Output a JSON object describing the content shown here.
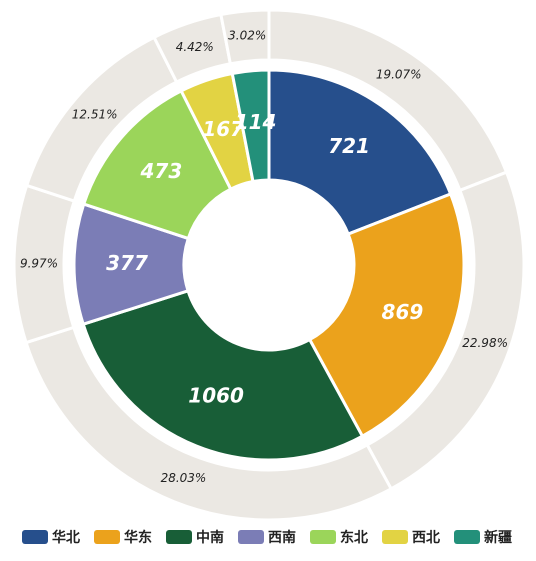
{
  "chart_data": {
    "type": "pie",
    "categories": [
      "华北",
      "华东",
      "中南",
      "西南",
      "东北",
      "西北",
      "新疆"
    ],
    "values": [
      721,
      869,
      1060,
      377,
      473,
      167,
      114
    ],
    "colors": [
      "#264f8c",
      "#eba21c",
      "#185e37",
      "#7b7db6",
      "#9bd55a",
      "#e2d343",
      "#23907a"
    ],
    "percentages": [
      19.07,
      22.98,
      28.03,
      9.97,
      12.51,
      4.42,
      3.02
    ],
    "percent_labels": [
      "19.07%",
      "22.98%",
      "28.03%",
      "9.97%",
      "12.51%",
      "4.42%",
      "3.02%"
    ],
    "ring_color": "#ebe8e3",
    "legend": "bottom"
  }
}
